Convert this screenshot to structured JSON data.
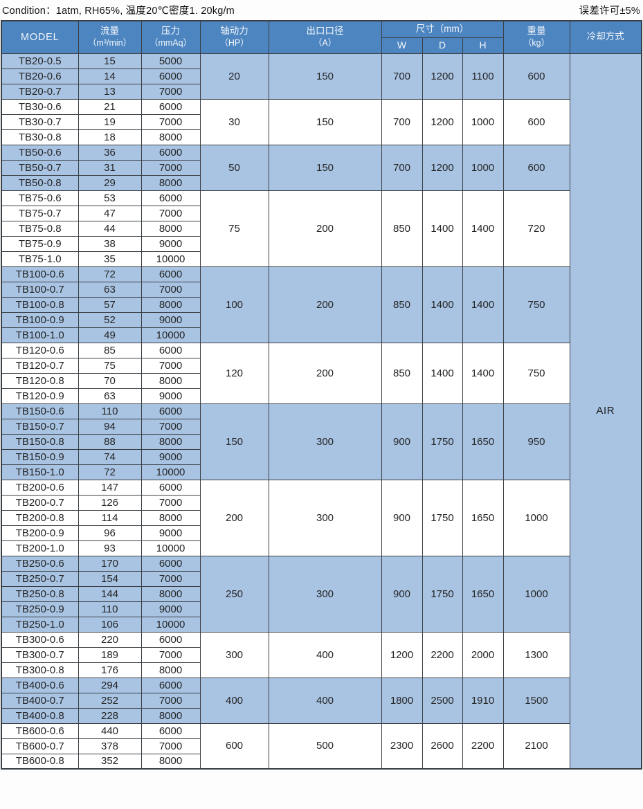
{
  "meta": {
    "condition": "Condition：1atm, RH65%, 温度20℃密度1. 20kg/m",
    "tolerance": "误差许可±5%"
  },
  "table": {
    "headers": {
      "model": "MODEL",
      "flow_l1": "流量",
      "flow_l2": "（m³/min）",
      "pressure_l1": "压力",
      "pressure_l2": "（mmAq）",
      "power_l1": "轴动力",
      "power_l2": "（HP）",
      "outlet_l1": "出口口径",
      "outlet_l2": "（A）",
      "size": "尺寸（mm）",
      "w": "W",
      "d": "D",
      "h": "H",
      "weight_l1": "重量",
      "weight_l2": "（kg）",
      "cooling": "冷却方式"
    },
    "cooling_value": "AIR",
    "groups": [
      {
        "shaded": true,
        "hp": "20",
        "outlet_a": "150",
        "w": "700",
        "d": "1200",
        "h": "1100",
        "weight_kg": "600",
        "rows": [
          {
            "model": "TB20-0.5",
            "flow": "15",
            "pressure": "5000"
          },
          {
            "model": "TB20-0.6",
            "flow": "14",
            "pressure": "6000"
          },
          {
            "model": "TB20-0.7",
            "flow": "13",
            "pressure": "7000"
          }
        ]
      },
      {
        "shaded": false,
        "hp": "30",
        "outlet_a": "150",
        "w": "700",
        "d": "1200",
        "h": "1000",
        "weight_kg": "600",
        "rows": [
          {
            "model": "TB30-0.6",
            "flow": "21",
            "pressure": "6000"
          },
          {
            "model": "TB30-0.7",
            "flow": "19",
            "pressure": "7000"
          },
          {
            "model": "TB30-0.8",
            "flow": "18",
            "pressure": "8000"
          }
        ]
      },
      {
        "shaded": true,
        "hp": "50",
        "outlet_a": "150",
        "w": "700",
        "d": "1200",
        "h": "1000",
        "weight_kg": "600",
        "rows": [
          {
            "model": "TB50-0.6",
            "flow": "36",
            "pressure": "6000"
          },
          {
            "model": "TB50-0.7",
            "flow": "31",
            "pressure": "7000"
          },
          {
            "model": "TB50-0.8",
            "flow": "29",
            "pressure": "8000"
          }
        ]
      },
      {
        "shaded": false,
        "hp": "75",
        "outlet_a": "200",
        "w": "850",
        "d": "1400",
        "h": "1400",
        "weight_kg": "720",
        "rows": [
          {
            "model": "TB75-0.6",
            "flow": "53",
            "pressure": "6000"
          },
          {
            "model": "TB75-0.7",
            "flow": "47",
            "pressure": "7000"
          },
          {
            "model": "TB75-0.8",
            "flow": "44",
            "pressure": "8000"
          },
          {
            "model": "TB75-0.9",
            "flow": "38",
            "pressure": "9000"
          },
          {
            "model": "TB75-1.0",
            "flow": "35",
            "pressure": "10000"
          }
        ]
      },
      {
        "shaded": true,
        "hp": "100",
        "outlet_a": "200",
        "w": "850",
        "d": "1400",
        "h": "1400",
        "weight_kg": "750",
        "rows": [
          {
            "model": "TB100-0.6",
            "flow": "72",
            "pressure": "6000"
          },
          {
            "model": "TB100-0.7",
            "flow": "63",
            "pressure": "7000"
          },
          {
            "model": "TB100-0.8",
            "flow": "57",
            "pressure": "8000"
          },
          {
            "model": "TB100-0.9",
            "flow": "52",
            "pressure": "9000"
          },
          {
            "model": "TB100-1.0",
            "flow": "49",
            "pressure": "10000"
          }
        ]
      },
      {
        "shaded": false,
        "hp": "120",
        "outlet_a": "200",
        "w": "850",
        "d": "1400",
        "h": "1400",
        "weight_kg": "750",
        "rows": [
          {
            "model": "TB120-0.6",
            "flow": "85",
            "pressure": "6000"
          },
          {
            "model": "TB120-0.7",
            "flow": "75",
            "pressure": "7000"
          },
          {
            "model": "TB120-0.8",
            "flow": "70",
            "pressure": "8000"
          },
          {
            "model": "TB120-0.9",
            "flow": "63",
            "pressure": "9000"
          }
        ]
      },
      {
        "shaded": true,
        "hp": "150",
        "outlet_a": "300",
        "w": "900",
        "d": "1750",
        "h": "1650",
        "weight_kg": "950",
        "rows": [
          {
            "model": "TB150-0.6",
            "flow": "110",
            "pressure": "6000"
          },
          {
            "model": "TB150-0.7",
            "flow": "94",
            "pressure": "7000"
          },
          {
            "model": "TB150-0.8",
            "flow": "88",
            "pressure": "8000"
          },
          {
            "model": "TB150-0.9",
            "flow": "74",
            "pressure": "9000"
          },
          {
            "model": "TB150-1.0",
            "flow": "72",
            "pressure": "10000"
          }
        ]
      },
      {
        "shaded": false,
        "hp": "200",
        "outlet_a": "300",
        "w": "900",
        "d": "1750",
        "h": "1650",
        "weight_kg": "1000",
        "rows": [
          {
            "model": "TB200-0.6",
            "flow": "147",
            "pressure": "6000"
          },
          {
            "model": "TB200-0.7",
            "flow": "126",
            "pressure": "7000"
          },
          {
            "model": "TB200-0.8",
            "flow": "114",
            "pressure": "8000"
          },
          {
            "model": "TB200-0.9",
            "flow": "96",
            "pressure": "9000"
          },
          {
            "model": "TB200-1.0",
            "flow": "93",
            "pressure": "10000"
          }
        ]
      },
      {
        "shaded": true,
        "hp": "250",
        "outlet_a": "300",
        "w": "900",
        "d": "1750",
        "h": "1650",
        "weight_kg": "1000",
        "rows": [
          {
            "model": "TB250-0.6",
            "flow": "170",
            "pressure": "6000"
          },
          {
            "model": "TB250-0.7",
            "flow": "154",
            "pressure": "7000"
          },
          {
            "model": "TB250-0.8",
            "flow": "144",
            "pressure": "8000"
          },
          {
            "model": "TB250-0.9",
            "flow": "110",
            "pressure": "9000"
          },
          {
            "model": "TB250-1.0",
            "flow": "106",
            "pressure": "10000"
          }
        ]
      },
      {
        "shaded": false,
        "hp": "300",
        "outlet_a": "400",
        "w": "1200",
        "d": "2200",
        "h": "2000",
        "weight_kg": "1300",
        "rows": [
          {
            "model": "TB300-0.6",
            "flow": "220",
            "pressure": "6000"
          },
          {
            "model": "TB300-0.7",
            "flow": "189",
            "pressure": "7000"
          },
          {
            "model": "TB300-0.8",
            "flow": "176",
            "pressure": "8000"
          }
        ]
      },
      {
        "shaded": true,
        "hp": "400",
        "outlet_a": "400",
        "w": "1800",
        "d": "2500",
        "h": "1910",
        "weight_kg": "1500",
        "rows": [
          {
            "model": "TB400-0.6",
            "flow": "294",
            "pressure": "6000"
          },
          {
            "model": "TB400-0.7",
            "flow": "252",
            "pressure": "7000"
          },
          {
            "model": "TB400-0.8",
            "flow": "228",
            "pressure": "8000"
          }
        ]
      },
      {
        "shaded": false,
        "hp": "600",
        "outlet_a": "500",
        "w": "2300",
        "d": "2600",
        "h": "2200",
        "weight_kg": "2100",
        "rows": [
          {
            "model": "TB600-0.6",
            "flow": "440",
            "pressure": "6000"
          },
          {
            "model": "TB600-0.7",
            "flow": "378",
            "pressure": "7000"
          },
          {
            "model": "TB600-0.8",
            "flow": "352",
            "pressure": "8000"
          }
        ]
      }
    ]
  }
}
